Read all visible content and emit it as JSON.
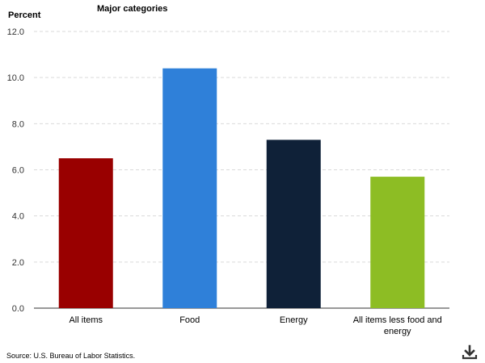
{
  "chart_data": {
    "type": "bar",
    "title": "Major categories",
    "ylabel": "Percent",
    "xlabel": "",
    "categories": [
      "All items",
      "Food",
      "Energy",
      "All items less food and energy"
    ],
    "category_lines": [
      [
        "All items"
      ],
      [
        "Food"
      ],
      [
        "Energy"
      ],
      [
        "All items less food and",
        "energy"
      ]
    ],
    "values": [
      6.5,
      10.4,
      7.3,
      5.7
    ],
    "colors": [
      "#990000",
      "#2f80d9",
      "#0f2138",
      "#8dbd24"
    ],
    "ylim": [
      0,
      12
    ],
    "yticks": [
      "0.0",
      "2.0",
      "4.0",
      "6.0",
      "8.0",
      "10.0",
      "12.0"
    ],
    "grid": true,
    "legend": "none"
  },
  "source": "Source: U.S. Bureau of Labor Statistics.",
  "icons": {
    "download": "download-icon"
  }
}
